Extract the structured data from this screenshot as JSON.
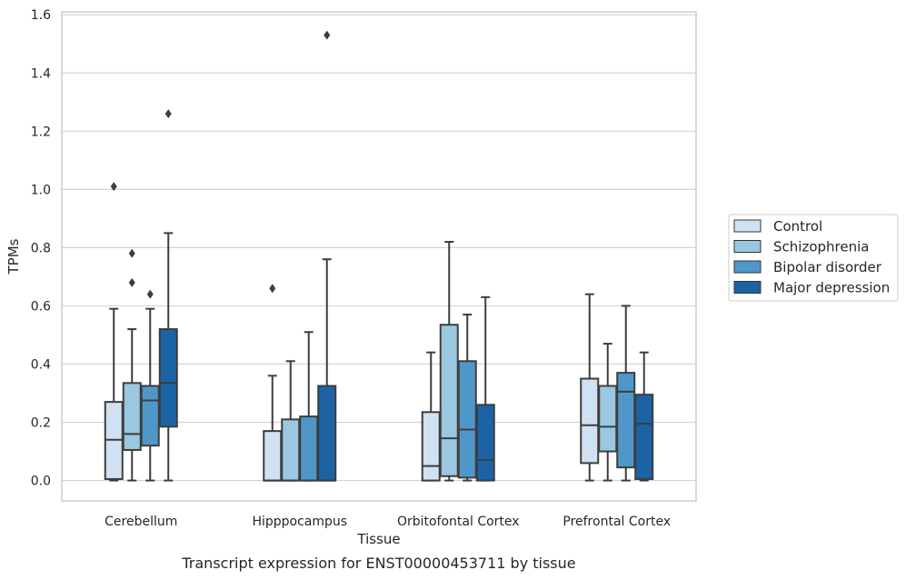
{
  "chart_data": {
    "type": "box",
    "title": "",
    "caption": "Transcript expression for ENST00000453711 by tissue",
    "xlabel": "Tissue",
    "ylabel": "TPMs",
    "ylim": [
      -0.07,
      1.61
    ],
    "yticks": [
      "0.0",
      "0.2",
      "0.4",
      "0.6",
      "0.8",
      "1.0",
      "1.2",
      "1.4",
      "1.6"
    ],
    "grid": "horizontal",
    "legend_position": "right-outside",
    "categories": [
      "Cerebellum",
      "Hipppocampus",
      "Orbitofontal Cortex",
      "Prefrontal Cortex"
    ],
    "series": [
      {
        "name": "Control",
        "color": "#d0e1f2",
        "boxes": [
          {
            "whislo": 0.0,
            "q1": 0.005,
            "med": 0.14,
            "q3": 0.27,
            "whishi": 0.59,
            "fliers": [
              1.01
            ]
          },
          {
            "whislo": 0.0,
            "q1": 0.0,
            "med": 0.0,
            "q3": 0.17,
            "whishi": 0.36,
            "fliers": [
              0.66
            ]
          },
          {
            "whislo": 0.0,
            "q1": 0.0,
            "med": 0.05,
            "q3": 0.235,
            "whishi": 0.44,
            "fliers": []
          },
          {
            "whislo": 0.0,
            "q1": 0.06,
            "med": 0.19,
            "q3": 0.35,
            "whishi": 0.64,
            "fliers": []
          }
        ]
      },
      {
        "name": "Schizophrenia",
        "color": "#9ac8e0",
        "boxes": [
          {
            "whislo": 0.0,
            "q1": 0.105,
            "med": 0.16,
            "q3": 0.335,
            "whishi": 0.52,
            "fliers": [
              0.68,
              0.78
            ]
          },
          {
            "whislo": 0.0,
            "q1": 0.0,
            "med": 0.0,
            "q3": 0.21,
            "whishi": 0.41,
            "fliers": []
          },
          {
            "whislo": 0.0,
            "q1": 0.015,
            "med": 0.145,
            "q3": 0.535,
            "whishi": 0.82,
            "fliers": []
          },
          {
            "whislo": 0.0,
            "q1": 0.1,
            "med": 0.185,
            "q3": 0.325,
            "whishi": 0.47,
            "fliers": []
          }
        ]
      },
      {
        "name": "Bipolar disorder",
        "color": "#5097c9",
        "boxes": [
          {
            "whislo": 0.0,
            "q1": 0.12,
            "med": 0.275,
            "q3": 0.325,
            "whishi": 0.59,
            "fliers": [
              0.64
            ]
          },
          {
            "whislo": 0.0,
            "q1": 0.0,
            "med": 0.0,
            "q3": 0.22,
            "whishi": 0.51,
            "fliers": []
          },
          {
            "whislo": 0.0,
            "q1": 0.01,
            "med": 0.175,
            "q3": 0.41,
            "whishi": 0.57,
            "fliers": []
          },
          {
            "whislo": 0.0,
            "q1": 0.045,
            "med": 0.305,
            "q3": 0.37,
            "whishi": 0.6,
            "fliers": []
          }
        ]
      },
      {
        "name": "Major depression",
        "color": "#1b63a5",
        "boxes": [
          {
            "whislo": 0.0,
            "q1": 0.185,
            "med": 0.335,
            "q3": 0.52,
            "whishi": 0.85,
            "fliers": [
              1.26
            ]
          },
          {
            "whislo": 0.0,
            "q1": 0.0,
            "med": 0.0,
            "q3": 0.325,
            "whishi": 0.76,
            "fliers": [
              1.53
            ]
          },
          {
            "whislo": 0.0,
            "q1": 0.0,
            "med": 0.07,
            "q3": 0.26,
            "whishi": 0.63,
            "fliers": []
          },
          {
            "whislo": 0.0,
            "q1": 0.005,
            "med": 0.195,
            "q3": 0.295,
            "whishi": 0.44,
            "fliers": []
          }
        ]
      }
    ]
  }
}
